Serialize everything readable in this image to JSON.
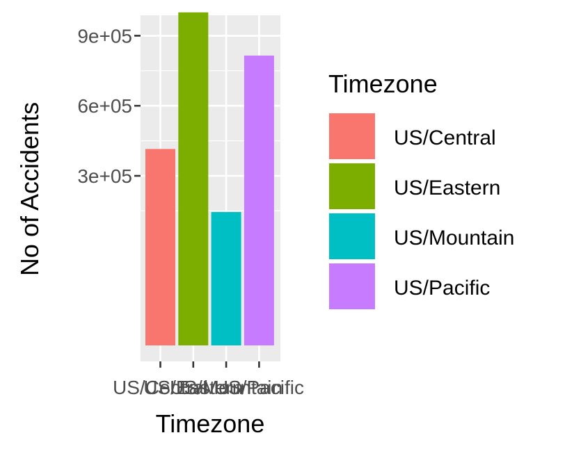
{
  "chart_data": {
    "type": "bar",
    "xlabel": "Timezone",
    "ylabel": "No of Accidents",
    "categories": [
      "US/Central",
      "US/Eastern",
      "US/Mountain",
      "US/Pacific"
    ],
    "values": [
      415000,
      1000000,
      145000,
      815000
    ],
    "colors": [
      "#F8766D",
      "#7CAE00",
      "#00BFC4",
      "#C77CFF"
    ],
    "y_ticks": [
      300000,
      600000,
      900000
    ],
    "y_tick_labels": [
      "3e+05",
      "6e+05",
      "9e+05"
    ],
    "ylim": [
      -420000,
      1070000
    ],
    "legend": {
      "title": "Timezone",
      "position": "right",
      "entries": [
        "US/Central",
        "US/Eastern",
        "US/Mountain",
        "US/Pacific"
      ]
    },
    "grid": true,
    "background": "#EBEBEB"
  }
}
